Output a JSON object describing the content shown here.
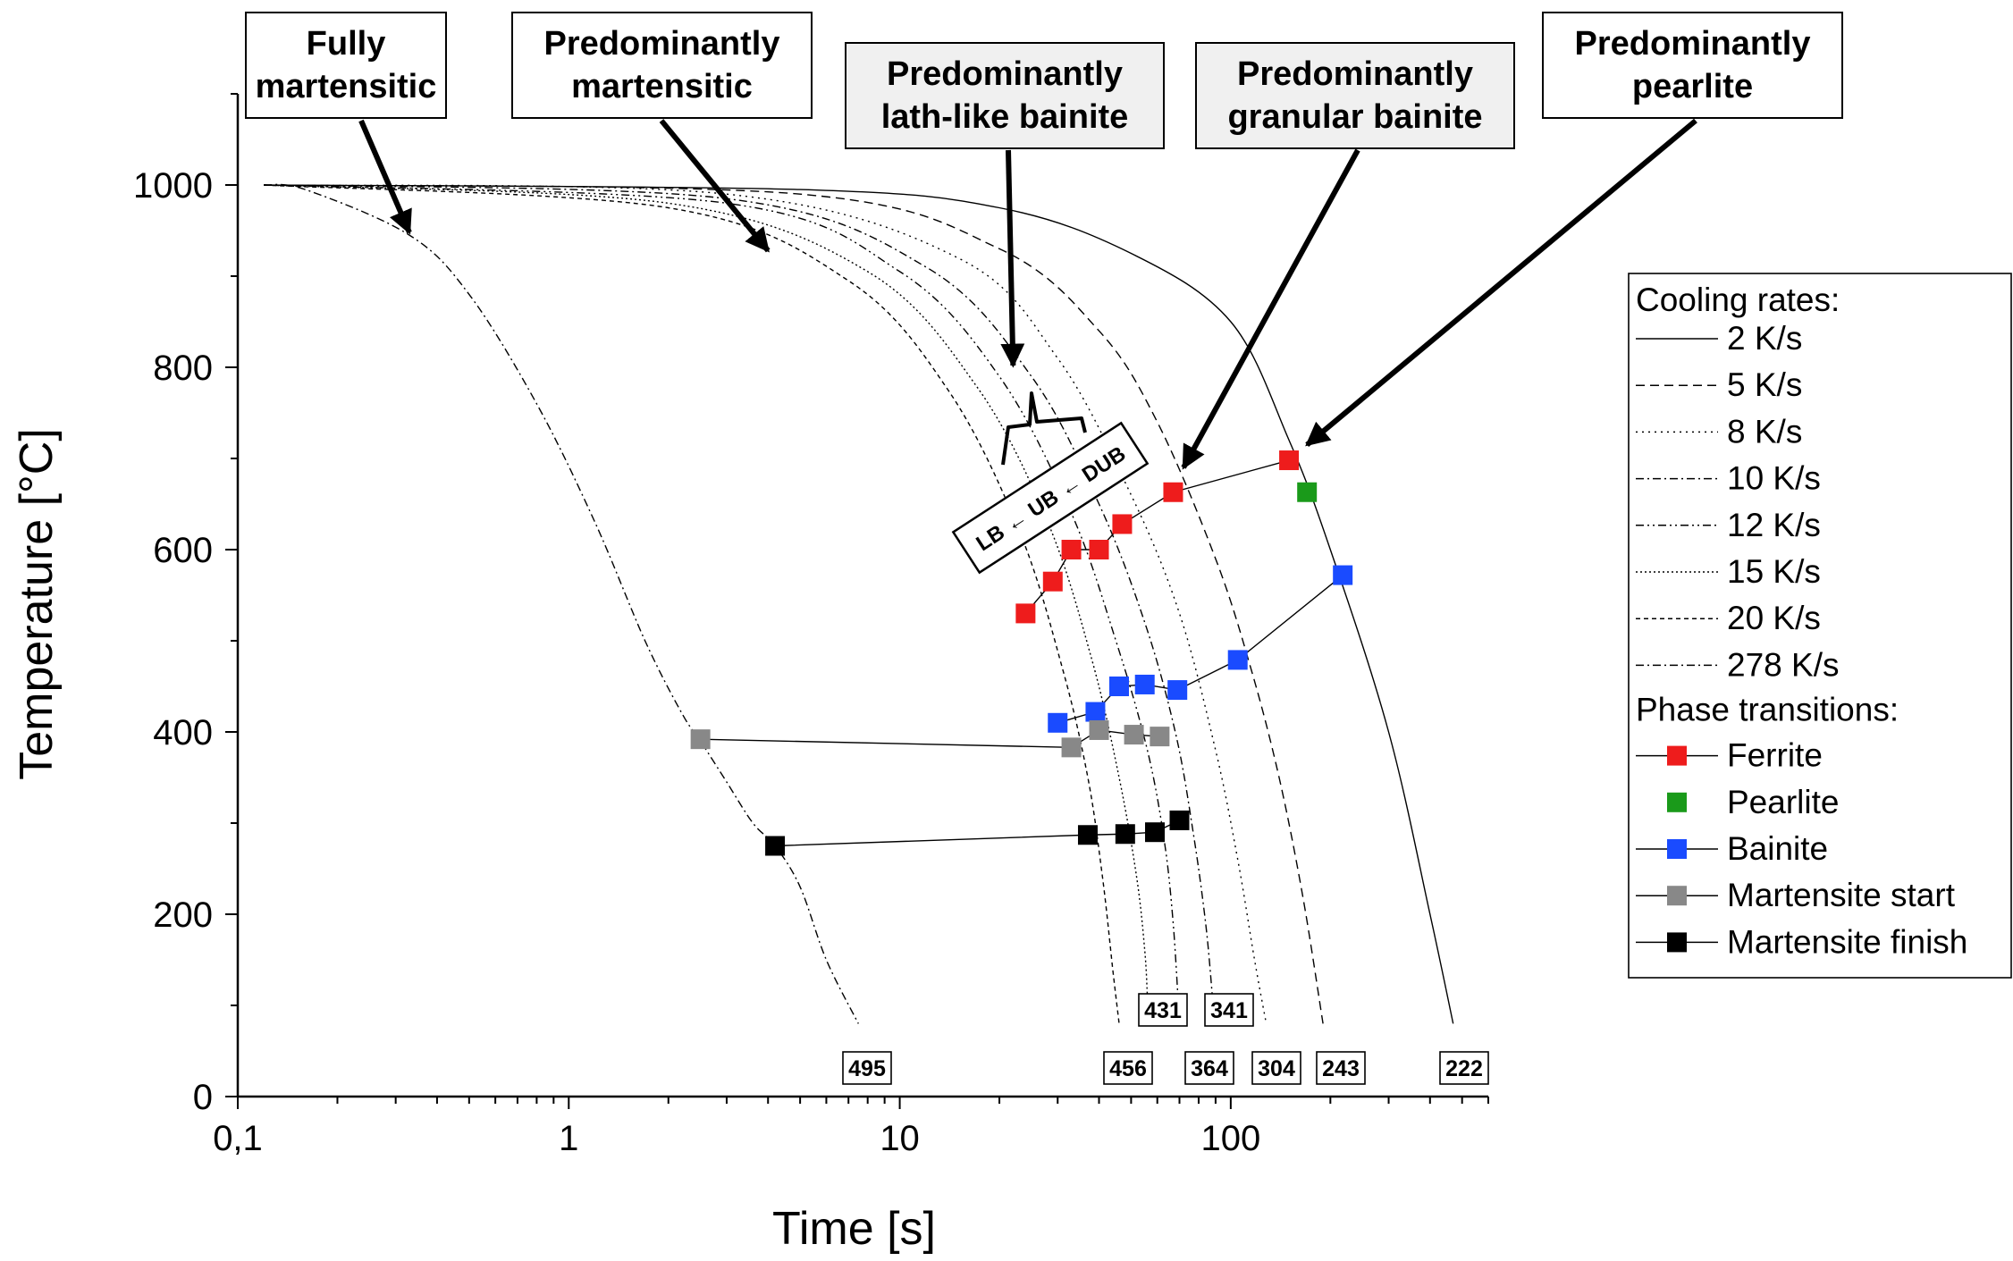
{
  "chart_data": {
    "type": "line",
    "x_scale": "log",
    "xlabel": "Time [s]",
    "ylabel": "Temperature [°C]",
    "xlim": [
      0.1,
      600
    ],
    "ylim": [
      0,
      1100
    ],
    "x_ticks": [
      {
        "value": 0.1,
        "label": "0,1"
      },
      {
        "value": 1,
        "label": "1"
      },
      {
        "value": 10,
        "label": "10"
      },
      {
        "value": 100,
        "label": "100"
      }
    ],
    "y_ticks": [
      0,
      200,
      400,
      600,
      800,
      1000
    ],
    "legend": {
      "position": "right",
      "cooling_title": "Cooling rates:",
      "phase_title": "Phase transitions:"
    },
    "cooling_curves": [
      {
        "name": "2 K/s",
        "dash": "solid",
        "end_label": "222",
        "points": [
          [
            0.12,
            1000
          ],
          [
            5,
            995
          ],
          [
            20,
            975
          ],
          [
            50,
            925
          ],
          [
            100,
            850
          ],
          [
            150,
            720
          ],
          [
            200,
            600
          ],
          [
            300,
            400
          ],
          [
            400,
            200
          ],
          [
            470,
            80
          ]
        ]
      },
      {
        "name": "5 K/s",
        "dash": "dashed",
        "end_label": "243",
        "points": [
          [
            0.12,
            1000
          ],
          [
            5,
            990
          ],
          [
            20,
            930
          ],
          [
            40,
            840
          ],
          [
            60,
            740
          ],
          [
            90,
            590
          ],
          [
            115,
            470
          ],
          [
            140,
            350
          ],
          [
            165,
            220
          ],
          [
            190,
            80
          ]
        ]
      },
      {
        "name": "8 K/s",
        "dash": "dotted",
        "end_label": "304",
        "points": [
          [
            0.12,
            1000
          ],
          [
            3,
            990
          ],
          [
            15,
            920
          ],
          [
            30,
            810
          ],
          [
            50,
            660
          ],
          [
            70,
            530
          ],
          [
            90,
            380
          ],
          [
            105,
            260
          ],
          [
            118,
            150
          ],
          [
            128,
            80
          ]
        ]
      },
      {
        "name": "10 K/s",
        "dash": "dashdot",
        "end_label": "341",
        "points": [
          [
            0.12,
            1000
          ],
          [
            3,
            985
          ],
          [
            12,
            910
          ],
          [
            25,
            790
          ],
          [
            40,
            650
          ],
          [
            55,
            520
          ],
          [
            68,
            400
          ],
          [
            77,
            290
          ],
          [
            84,
            190
          ],
          [
            88,
            110
          ]
        ]
      },
      {
        "name": "12 K/s",
        "dash": "dashdotdot",
        "end_label": "364",
        "points": [
          [
            0.12,
            1000
          ],
          [
            3,
            980
          ],
          [
            10,
            905
          ],
          [
            20,
            790
          ],
          [
            33,
            640
          ],
          [
            45,
            500
          ],
          [
            56,
            380
          ],
          [
            63,
            280
          ],
          [
            67,
            190
          ],
          [
            70,
            80
          ]
        ]
      },
      {
        "name": "15 K/s",
        "dash": "dotdense",
        "end_label": "431",
        "points": [
          [
            0.12,
            1000
          ],
          [
            2,
            980
          ],
          [
            8,
            905
          ],
          [
            17,
            780
          ],
          [
            28,
            630
          ],
          [
            38,
            480
          ],
          [
            46,
            350
          ],
          [
            52,
            240
          ],
          [
            55,
            160
          ],
          [
            56,
            110
          ]
        ]
      },
      {
        "name": "20 K/s",
        "dash": "shortdash",
        "end_label": "456",
        "points": [
          [
            0.12,
            1000
          ],
          [
            2,
            975
          ],
          [
            7,
            895
          ],
          [
            14,
            775
          ],
          [
            23,
            620
          ],
          [
            31,
            470
          ],
          [
            37,
            350
          ],
          [
            41,
            240
          ],
          [
            44,
            140
          ],
          [
            46,
            80
          ]
        ]
      },
      {
        "name": "278 K/s",
        "dash": "dashdot",
        "end_label": "495",
        "points": [
          [
            0.12,
            1000
          ],
          [
            0.16,
            995
          ],
          [
            0.33,
            945
          ],
          [
            0.5,
            880
          ],
          [
            0.8,
            760
          ],
          [
            1.2,
            630
          ],
          [
            1.7,
            500
          ],
          [
            2.2,
            420
          ],
          [
            2.5,
            390
          ],
          [
            3,
            345
          ],
          [
            3.6,
            300
          ],
          [
            4.2,
            275
          ],
          [
            5,
            230
          ],
          [
            6,
            150
          ],
          [
            7.5,
            80
          ]
        ]
      }
    ],
    "transitions": [
      {
        "name": "Ferrite",
        "color": "#ee1c1c",
        "line": true,
        "points": [
          [
            24,
            530
          ],
          [
            29,
            565
          ],
          [
            33,
            600
          ],
          [
            40,
            600
          ],
          [
            47,
            628
          ],
          [
            67,
            663
          ],
          [
            150,
            698
          ]
        ]
      },
      {
        "name": "Pearlite",
        "color": "#1a9a1a",
        "line": false,
        "points": [
          [
            170,
            663
          ]
        ]
      },
      {
        "name": "Bainite",
        "color": "#1a4bff",
        "line": true,
        "points": [
          [
            30,
            410
          ],
          [
            39,
            422
          ],
          [
            46,
            450
          ],
          [
            55,
            452
          ],
          [
            69,
            446
          ],
          [
            105,
            479
          ],
          [
            218,
            572
          ]
        ]
      },
      {
        "name": "Martensite start",
        "color": "#888888",
        "line": true,
        "points": [
          [
            2.5,
            392
          ],
          [
            33,
            383
          ],
          [
            40,
            402
          ],
          [
            51,
            397
          ],
          [
            61,
            395
          ]
        ]
      },
      {
        "name": "Martensite finish",
        "color": "#000000",
        "line": true,
        "points": [
          [
            4.2,
            275
          ],
          [
            37,
            287
          ],
          [
            48,
            288
          ],
          [
            59,
            290
          ],
          [
            70,
            303
          ]
        ]
      }
    ],
    "annotations": [
      {
        "lines": [
          "Fully",
          "martensitic"
        ],
        "shaded": false,
        "arrow_to": [
          0.33,
          948
        ]
      },
      {
        "lines": [
          "Predominantly",
          "martensitic"
        ],
        "shaded": false,
        "arrow_to": [
          4,
          928
        ]
      },
      {
        "lines": [
          "Predominantly",
          "lath-like bainite"
        ],
        "shaded": true,
        "arrow_to": [
          22,
          802
        ]
      },
      {
        "lines": [
          "Predominantly",
          "granular bainite"
        ],
        "shaded": true,
        "arrow_to": [
          72,
          690
        ]
      },
      {
        "lines": [
          "Predominantly",
          "pearlite"
        ],
        "shaded": false,
        "arrow_to": [
          170,
          715
        ]
      }
    ],
    "region_label": "LB ← UB ← DUB"
  }
}
